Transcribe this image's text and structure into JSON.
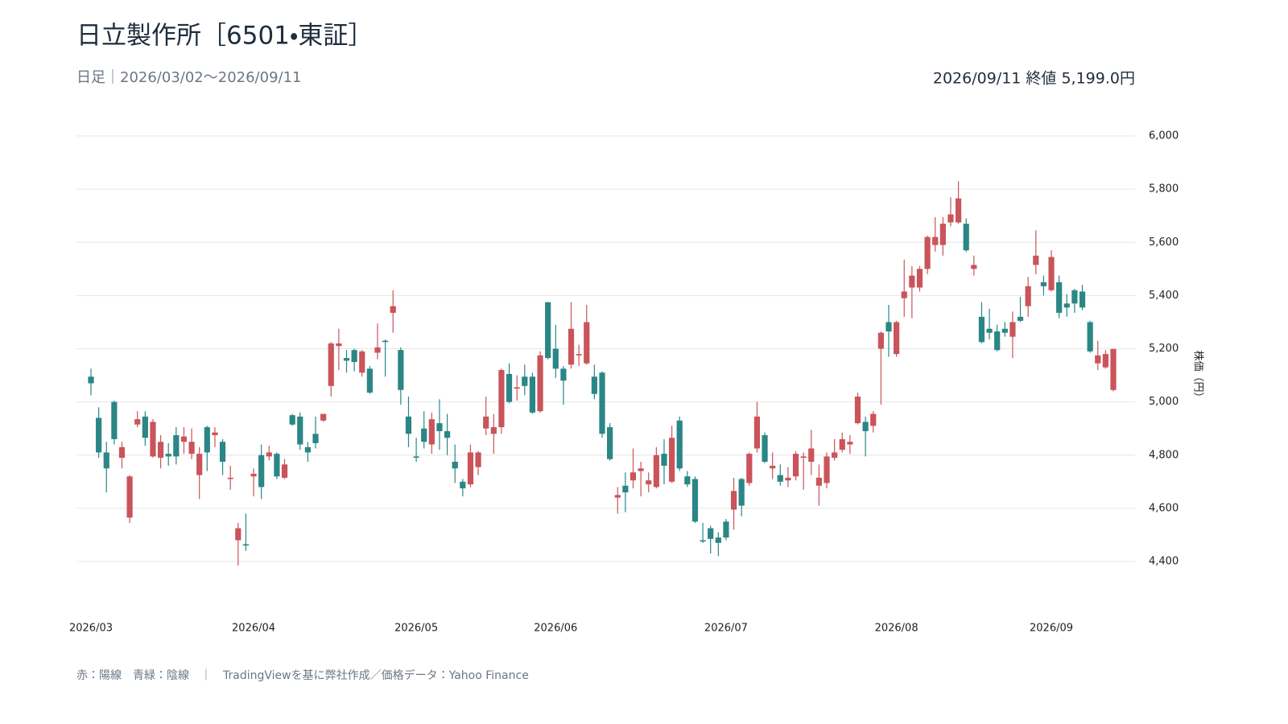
{
  "chart_data": {
    "type": "candlestick",
    "title": "日立製作所［6501・東証］",
    "subtitle": "日足｜2026/03/02〜2026/09/11",
    "annotation": "2026/09/11 終値 5,199.0円",
    "note": "赤：陽線　青緑：陰線　｜　TradingViewを基に弊社作成／価格データ：Yahoo Finance",
    "y_label": "株価（円）",
    "up_color": "#c9545a",
    "down_color": "#2b8686",
    "grid": true,
    "ylim": [
      4400,
      6000
    ],
    "yticks": [
      {
        "value": 4400,
        "label": "4,400"
      },
      {
        "value": 4600,
        "label": "4,600"
      },
      {
        "value": 4800,
        "label": "4,800"
      },
      {
        "value": 5000,
        "label": "5,000"
      },
      {
        "value": 5200,
        "label": "5,200"
      },
      {
        "value": 5400,
        "label": "5,400"
      },
      {
        "value": 5600,
        "label": "5,600"
      },
      {
        "value": 5800,
        "label": "5,800"
      },
      {
        "value": 6000,
        "label": "6,000"
      }
    ],
    "categories": [
      "2026/03",
      null,
      null,
      null,
      null,
      null,
      null,
      null,
      null,
      null,
      null,
      null,
      null,
      null,
      null,
      null,
      null,
      null,
      null,
      null,
      null,
      "2026/04",
      null,
      null,
      null,
      null,
      null,
      null,
      null,
      null,
      null,
      null,
      null,
      null,
      null,
      null,
      null,
      null,
      null,
      null,
      null,
      null,
      "2026/05",
      null,
      null,
      null,
      null,
      null,
      null,
      null,
      null,
      null,
      null,
      null,
      null,
      null,
      null,
      null,
      null,
      null,
      "2026/06",
      null,
      null,
      null,
      null,
      null,
      null,
      null,
      null,
      null,
      null,
      null,
      null,
      null,
      null,
      null,
      null,
      null,
      null,
      null,
      null,
      null,
      "2026/07",
      null,
      null,
      null,
      null,
      null,
      null,
      null,
      null,
      null,
      null,
      null,
      null,
      null,
      null,
      null,
      null,
      null,
      null,
      null,
      null,
      null,
      "2026/08",
      null,
      null,
      null,
      null,
      null,
      null,
      null,
      null,
      null,
      null,
      null,
      null,
      null,
      null,
      null,
      null,
      null,
      null,
      null,
      "2026/09",
      null,
      null,
      null,
      null,
      null,
      null,
      null,
      null
    ],
    "open": [
      5095,
      4940,
      4810,
      5000,
      4790,
      4565,
      4915,
      4945,
      4795,
      4790,
      4805,
      4875,
      4850,
      4805,
      4725,
      4905,
      4875,
      4850,
      4710,
      4480,
      4465,
      4720,
      4800,
      4795,
      4805,
      4715,
      4950,
      4945,
      4830,
      4880,
      4930,
      5060,
      5210,
      5165,
      5195,
      5110,
      5125,
      5185,
      5230,
      5335,
      5195,
      4945,
      4795,
      4900,
      4840,
      4920,
      4890,
      4775,
      4700,
      4690,
      4755,
      4900,
      4880,
      4905,
      5105,
      5050,
      5095,
      5095,
      4965,
      5375,
      5200,
      5125,
      5140,
      5175,
      5145,
      5095,
      5110,
      4905,
      4640,
      4685,
      4705,
      4740,
      4690,
      4680,
      4805,
      4700,
      4930,
      4720,
      4710,
      4480,
      4525,
      4490,
      4550,
      4595,
      4710,
      4695,
      4825,
      4875,
      4750,
      4725,
      4705,
      4720,
      4790,
      4775,
      4685,
      4695,
      4790,
      4820,
      4840,
      4920,
      4925,
      4910,
      5200,
      5300,
      5180,
      5390,
      5430,
      5430,
      5500,
      5590,
      5590,
      5675,
      5675,
      5670,
      5500,
      5320,
      5275,
      5265,
      5275,
      5245,
      5320,
      5360,
      5515,
      5450,
      5420,
      5450,
      5370,
      5420,
      5415,
      5300,
      5145,
      5130,
      5045
    ],
    "high": [
      5125,
      4980,
      4850,
      5005,
      4850,
      4725,
      4965,
      4965,
      4935,
      4875,
      4845,
      4905,
      4905,
      4900,
      4830,
      4910,
      4905,
      4860,
      4760,
      4545,
      4580,
      4750,
      4840,
      4835,
      4810,
      4785,
      4955,
      4960,
      4850,
      4945,
      4955,
      5225,
      5275,
      5195,
      5200,
      5195,
      5135,
      5295,
      5235,
      5420,
      5205,
      5020,
      4865,
      4965,
      4960,
      5010,
      4955,
      4840,
      4710,
      4840,
      4815,
      5020,
      4955,
      5125,
      5145,
      5100,
      5140,
      5110,
      5190,
      5375,
      5290,
      5135,
      5375,
      5215,
      5365,
      5140,
      5115,
      4920,
      4680,
      4735,
      4825,
      4775,
      4735,
      4830,
      4860,
      4910,
      4945,
      4740,
      4720,
      4545,
      4535,
      4510,
      4560,
      4715,
      4715,
      4810,
      5000,
      4885,
      4810,
      4765,
      4755,
      4815,
      4810,
      4895,
      4765,
      4810,
      4860,
      4885,
      4875,
      5035,
      4945,
      4965,
      5265,
      5365,
      5305,
      5535,
      5510,
      5510,
      5625,
      5695,
      5695,
      5770,
      5830,
      5690,
      5550,
      5375,
      5350,
      5290,
      5300,
      5340,
      5395,
      5470,
      5645,
      5475,
      5570,
      5475,
      5405,
      5425,
      5440,
      5305,
      5230,
      5195,
      5200
    ],
    "low": [
      5025,
      4790,
      4660,
      4840,
      4750,
      4545,
      4905,
      4835,
      4790,
      4750,
      4760,
      4765,
      4805,
      4785,
      4635,
      4740,
      4830,
      4725,
      4670,
      4385,
      4440,
      4645,
      4635,
      4780,
      4710,
      4710,
      4910,
      4820,
      4775,
      4825,
      4925,
      5020,
      5120,
      5110,
      5115,
      5095,
      5030,
      5160,
      5095,
      5260,
      4990,
      4830,
      4775,
      4825,
      4805,
      4820,
      4800,
      4695,
      4645,
      4680,
      4725,
      4875,
      4805,
      4880,
      4995,
      5005,
      5025,
      4955,
      4960,
      5160,
      5090,
      4990,
      5125,
      5135,
      5140,
      5010,
      4865,
      4780,
      4580,
      4585,
      4675,
      4645,
      4660,
      4675,
      4690,
      4695,
      4740,
      4680,
      4545,
      4470,
      4430,
      4420,
      4480,
      4520,
      4570,
      4685,
      4810,
      4770,
      4710,
      4685,
      4680,
      4705,
      4670,
      4725,
      4610,
      4675,
      4780,
      4810,
      4805,
      4915,
      4795,
      4885,
      4990,
      5170,
      5170,
      5320,
      5315,
      5415,
      5480,
      5565,
      5550,
      5660,
      5670,
      5565,
      5475,
      5220,
      5235,
      5190,
      5245,
      5165,
      5300,
      5320,
      5480,
      5400,
      5415,
      5315,
      5320,
      5335,
      5345,
      5185,
      5120,
      5125,
      5040
    ],
    "close": [
      5070,
      4810,
      4750,
      4860,
      4830,
      4720,
      4935,
      4865,
      4925,
      4850,
      4795,
      4795,
      4870,
      4850,
      4805,
      4810,
      4885,
      4775,
      4715,
      4525,
      4460,
      4730,
      4680,
      4810,
      4720,
      4765,
      4915,
      4840,
      4810,
      4845,
      4955,
      5220,
      5220,
      5155,
      5150,
      5190,
      5035,
      5205,
      5225,
      5360,
      5045,
      4880,
      4790,
      4850,
      4935,
      4890,
      4865,
      4750,
      4675,
      4810,
      4810,
      4945,
      4905,
      5120,
      5000,
      5055,
      5060,
      4960,
      5175,
      5165,
      5125,
      5080,
      5275,
      5180,
      5300,
      5030,
      4880,
      4785,
      4650,
      4660,
      4735,
      4750,
      4705,
      4800,
      4760,
      4865,
      4750,
      4690,
      4550,
      4475,
      4485,
      4470,
      4490,
      4665,
      4610,
      4805,
      4945,
      4775,
      4760,
      4700,
      4715,
      4805,
      4795,
      4825,
      4715,
      4795,
      4810,
      4860,
      4850,
      5020,
      4890,
      4955,
      5260,
      5265,
      5300,
      5415,
      5475,
      5500,
      5620,
      5620,
      5670,
      5705,
      5765,
      5570,
      5515,
      5225,
      5260,
      5195,
      5260,
      5300,
      5305,
      5435,
      5550,
      5435,
      5545,
      5335,
      5355,
      5370,
      5355,
      5190,
      5175,
      5180,
      5199
    ]
  }
}
